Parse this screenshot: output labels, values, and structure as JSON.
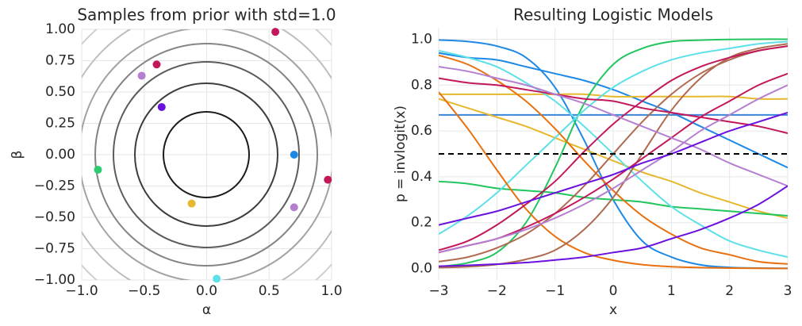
{
  "chart_data": [
    {
      "type": "scatter",
      "title": "Samples from prior with std=1.0",
      "x_label": "α",
      "y_label": "β",
      "xlim": [
        -1,
        1
      ],
      "ylim": [
        -1,
        1
      ],
      "xticks": [
        {
          "value": -1,
          "label": "−1.0"
        },
        {
          "value": -0.5,
          "label": "−0.5"
        },
        {
          "value": 0,
          "label": "0.0"
        },
        {
          "value": 0.5,
          "label": "0.5"
        },
        {
          "value": 1,
          "label": "1.0"
        }
      ],
      "yticks": [
        {
          "value": -1,
          "label": "−1.00"
        },
        {
          "value": -0.75,
          "label": "−0.75"
        },
        {
          "value": -0.5,
          "label": "−0.50"
        },
        {
          "value": -0.25,
          "label": "−0.25"
        },
        {
          "value": 0,
          "label": "0.00"
        },
        {
          "value": 0.25,
          "label": "0.25"
        },
        {
          "value": 0.5,
          "label": "0.50"
        },
        {
          "value": 0.75,
          "label": "0.75"
        },
        {
          "value": 1,
          "label": "1.00"
        }
      ],
      "grid": true,
      "x": [
        0.55,
        -0.4,
        -0.52,
        -0.36,
        0.7,
        0.97,
        -0.87,
        -0.12,
        0.7,
        0.08
      ],
      "values": [
        0.98,
        0.72,
        0.63,
        0.38,
        0.0,
        -0.2,
        -0.12,
        -0.39,
        -0.42,
        -0.99
      ],
      "colors": [
        "#c2185b",
        "#c2185b",
        "#b57fd1",
        "#6a11e0",
        "#1e88e5",
        "#c2185b",
        "#2ecc71",
        "#e6b82e",
        "#b57fd1",
        "#5ee0e8"
      ]
    },
    {
      "type": "line",
      "title": "Resulting Logistic Models",
      "x_label": "x",
      "y_label": "p = invlogit(x)",
      "xlim": [
        -3,
        3
      ],
      "ylim": [
        -0.05,
        1.05
      ],
      "xticks": [
        {
          "value": -3,
          "label": "−3"
        },
        {
          "value": -2,
          "label": "−2"
        },
        {
          "value": -1,
          "label": "−1"
        },
        0,
        1,
        2,
        3
      ],
      "yticks": [
        {
          "value": 0,
          "label": "0.0"
        },
        0.2,
        0.4,
        0.6,
        0.8,
        {
          "value": 1,
          "label": "1.0"
        }
      ],
      "grid": true,
      "hline": 0.5,
      "x": [
        -3,
        -2.5,
        -2,
        -1.5,
        -1,
        -0.5,
        0,
        0.5,
        1,
        1.5,
        2,
        2.5,
        3
      ],
      "series": [
        {
          "color": "#1e88e5",
          "values": [
            0.997,
            0.99,
            0.97,
            0.92,
            0.79,
            0.56,
            0.3,
            0.12,
            0.05,
            0.016,
            0.005,
            0.002,
            0.001
          ]
        },
        {
          "color": "#1e88e5",
          "values": [
            0.94,
            0.92,
            0.91,
            0.88,
            0.85,
            0.82,
            0.78,
            0.73,
            0.68,
            0.62,
            0.56,
            0.5,
            0.44
          ]
        },
        {
          "color": "#3a86d8",
          "values": [
            0.67,
            0.67,
            0.67,
            0.67,
            0.67,
            0.67,
            0.67,
            0.67,
            0.67,
            0.67,
            0.67,
            0.67,
            0.67
          ]
        },
        {
          "color": "#e6b82e",
          "values": [
            0.76,
            0.76,
            0.76,
            0.76,
            0.76,
            0.76,
            0.75,
            0.75,
            0.75,
            0.75,
            0.75,
            0.74,
            0.74
          ]
        },
        {
          "color": "#e6b82e",
          "values": [
            0.74,
            0.7,
            0.66,
            0.62,
            0.57,
            0.52,
            0.47,
            0.42,
            0.38,
            0.33,
            0.29,
            0.25,
            0.22
          ]
        },
        {
          "color": "#22c55e",
          "values": [
            0.008,
            0.025,
            0.07,
            0.2,
            0.44,
            0.72,
            0.89,
            0.96,
            0.99,
            0.996,
            0.999,
            1.0,
            1.0
          ]
        },
        {
          "color": "#22c55e",
          "values": [
            0.38,
            0.37,
            0.35,
            0.34,
            0.33,
            0.31,
            0.3,
            0.29,
            0.27,
            0.26,
            0.25,
            0.24,
            0.23
          ]
        },
        {
          "color": "#5ee0e8",
          "values": [
            0.95,
            0.92,
            0.88,
            0.81,
            0.73,
            0.62,
            0.5,
            0.38,
            0.27,
            0.19,
            0.12,
            0.08,
            0.05
          ]
        },
        {
          "color": "#5ee0e8",
          "values": [
            0.15,
            0.23,
            0.33,
            0.45,
            0.57,
            0.69,
            0.79,
            0.86,
            0.91,
            0.94,
            0.96,
            0.98,
            0.99
          ]
        },
        {
          "color": "#e8700f",
          "values": [
            0.77,
            0.61,
            0.43,
            0.26,
            0.14,
            0.07,
            0.036,
            0.017,
            0.008,
            0.004,
            0.002,
            0.001,
            0.0
          ]
        },
        {
          "color": "#e8700f",
          "values": [
            0.93,
            0.89,
            0.82,
            0.73,
            0.61,
            0.47,
            0.34,
            0.23,
            0.15,
            0.09,
            0.06,
            0.03,
            0.02
          ]
        },
        {
          "color": "#b06a50",
          "values": [
            0.004,
            0.008,
            0.018,
            0.04,
            0.08,
            0.17,
            0.31,
            0.5,
            0.69,
            0.83,
            0.92,
            0.96,
            0.98
          ]
        },
        {
          "color": "#b06a50",
          "values": [
            0.03,
            0.05,
            0.09,
            0.15,
            0.24,
            0.36,
            0.5,
            0.64,
            0.76,
            0.85,
            0.91,
            0.95,
            0.97
          ]
        },
        {
          "color": "#c2185b",
          "values": [
            0.83,
            0.81,
            0.8,
            0.78,
            0.76,
            0.74,
            0.73,
            0.7,
            0.68,
            0.66,
            0.64,
            0.62,
            0.59
          ]
        },
        {
          "color": "#c2185b",
          "values": [
            0.08,
            0.12,
            0.19,
            0.28,
            0.38,
            0.51,
            0.63,
            0.73,
            0.82,
            0.88,
            0.92,
            0.95,
            0.97
          ]
        },
        {
          "color": "#c2185b",
          "values": [
            0.07,
            0.1,
            0.13,
            0.18,
            0.24,
            0.31,
            0.39,
            0.48,
            0.57,
            0.66,
            0.73,
            0.8,
            0.85
          ]
        },
        {
          "color": "#b57fd1",
          "values": [
            0.88,
            0.86,
            0.83,
            0.8,
            0.76,
            0.72,
            0.67,
            0.62,
            0.57,
            0.52,
            0.46,
            0.41,
            0.36
          ]
        },
        {
          "color": "#b57fd1",
          "values": [
            0.07,
            0.1,
            0.13,
            0.17,
            0.22,
            0.28,
            0.35,
            0.43,
            0.51,
            0.6,
            0.67,
            0.74,
            0.8
          ]
        },
        {
          "color": "#6a11e0",
          "values": [
            0.19,
            0.22,
            0.25,
            0.29,
            0.33,
            0.37,
            0.41,
            0.46,
            0.5,
            0.55,
            0.6,
            0.64,
            0.68
          ]
        },
        {
          "color": "#6a11e0",
          "values": [
            0.01,
            0.014,
            0.019,
            0.026,
            0.037,
            0.05,
            0.07,
            0.09,
            0.13,
            0.17,
            0.22,
            0.28,
            0.36
          ]
        }
      ]
    }
  ]
}
